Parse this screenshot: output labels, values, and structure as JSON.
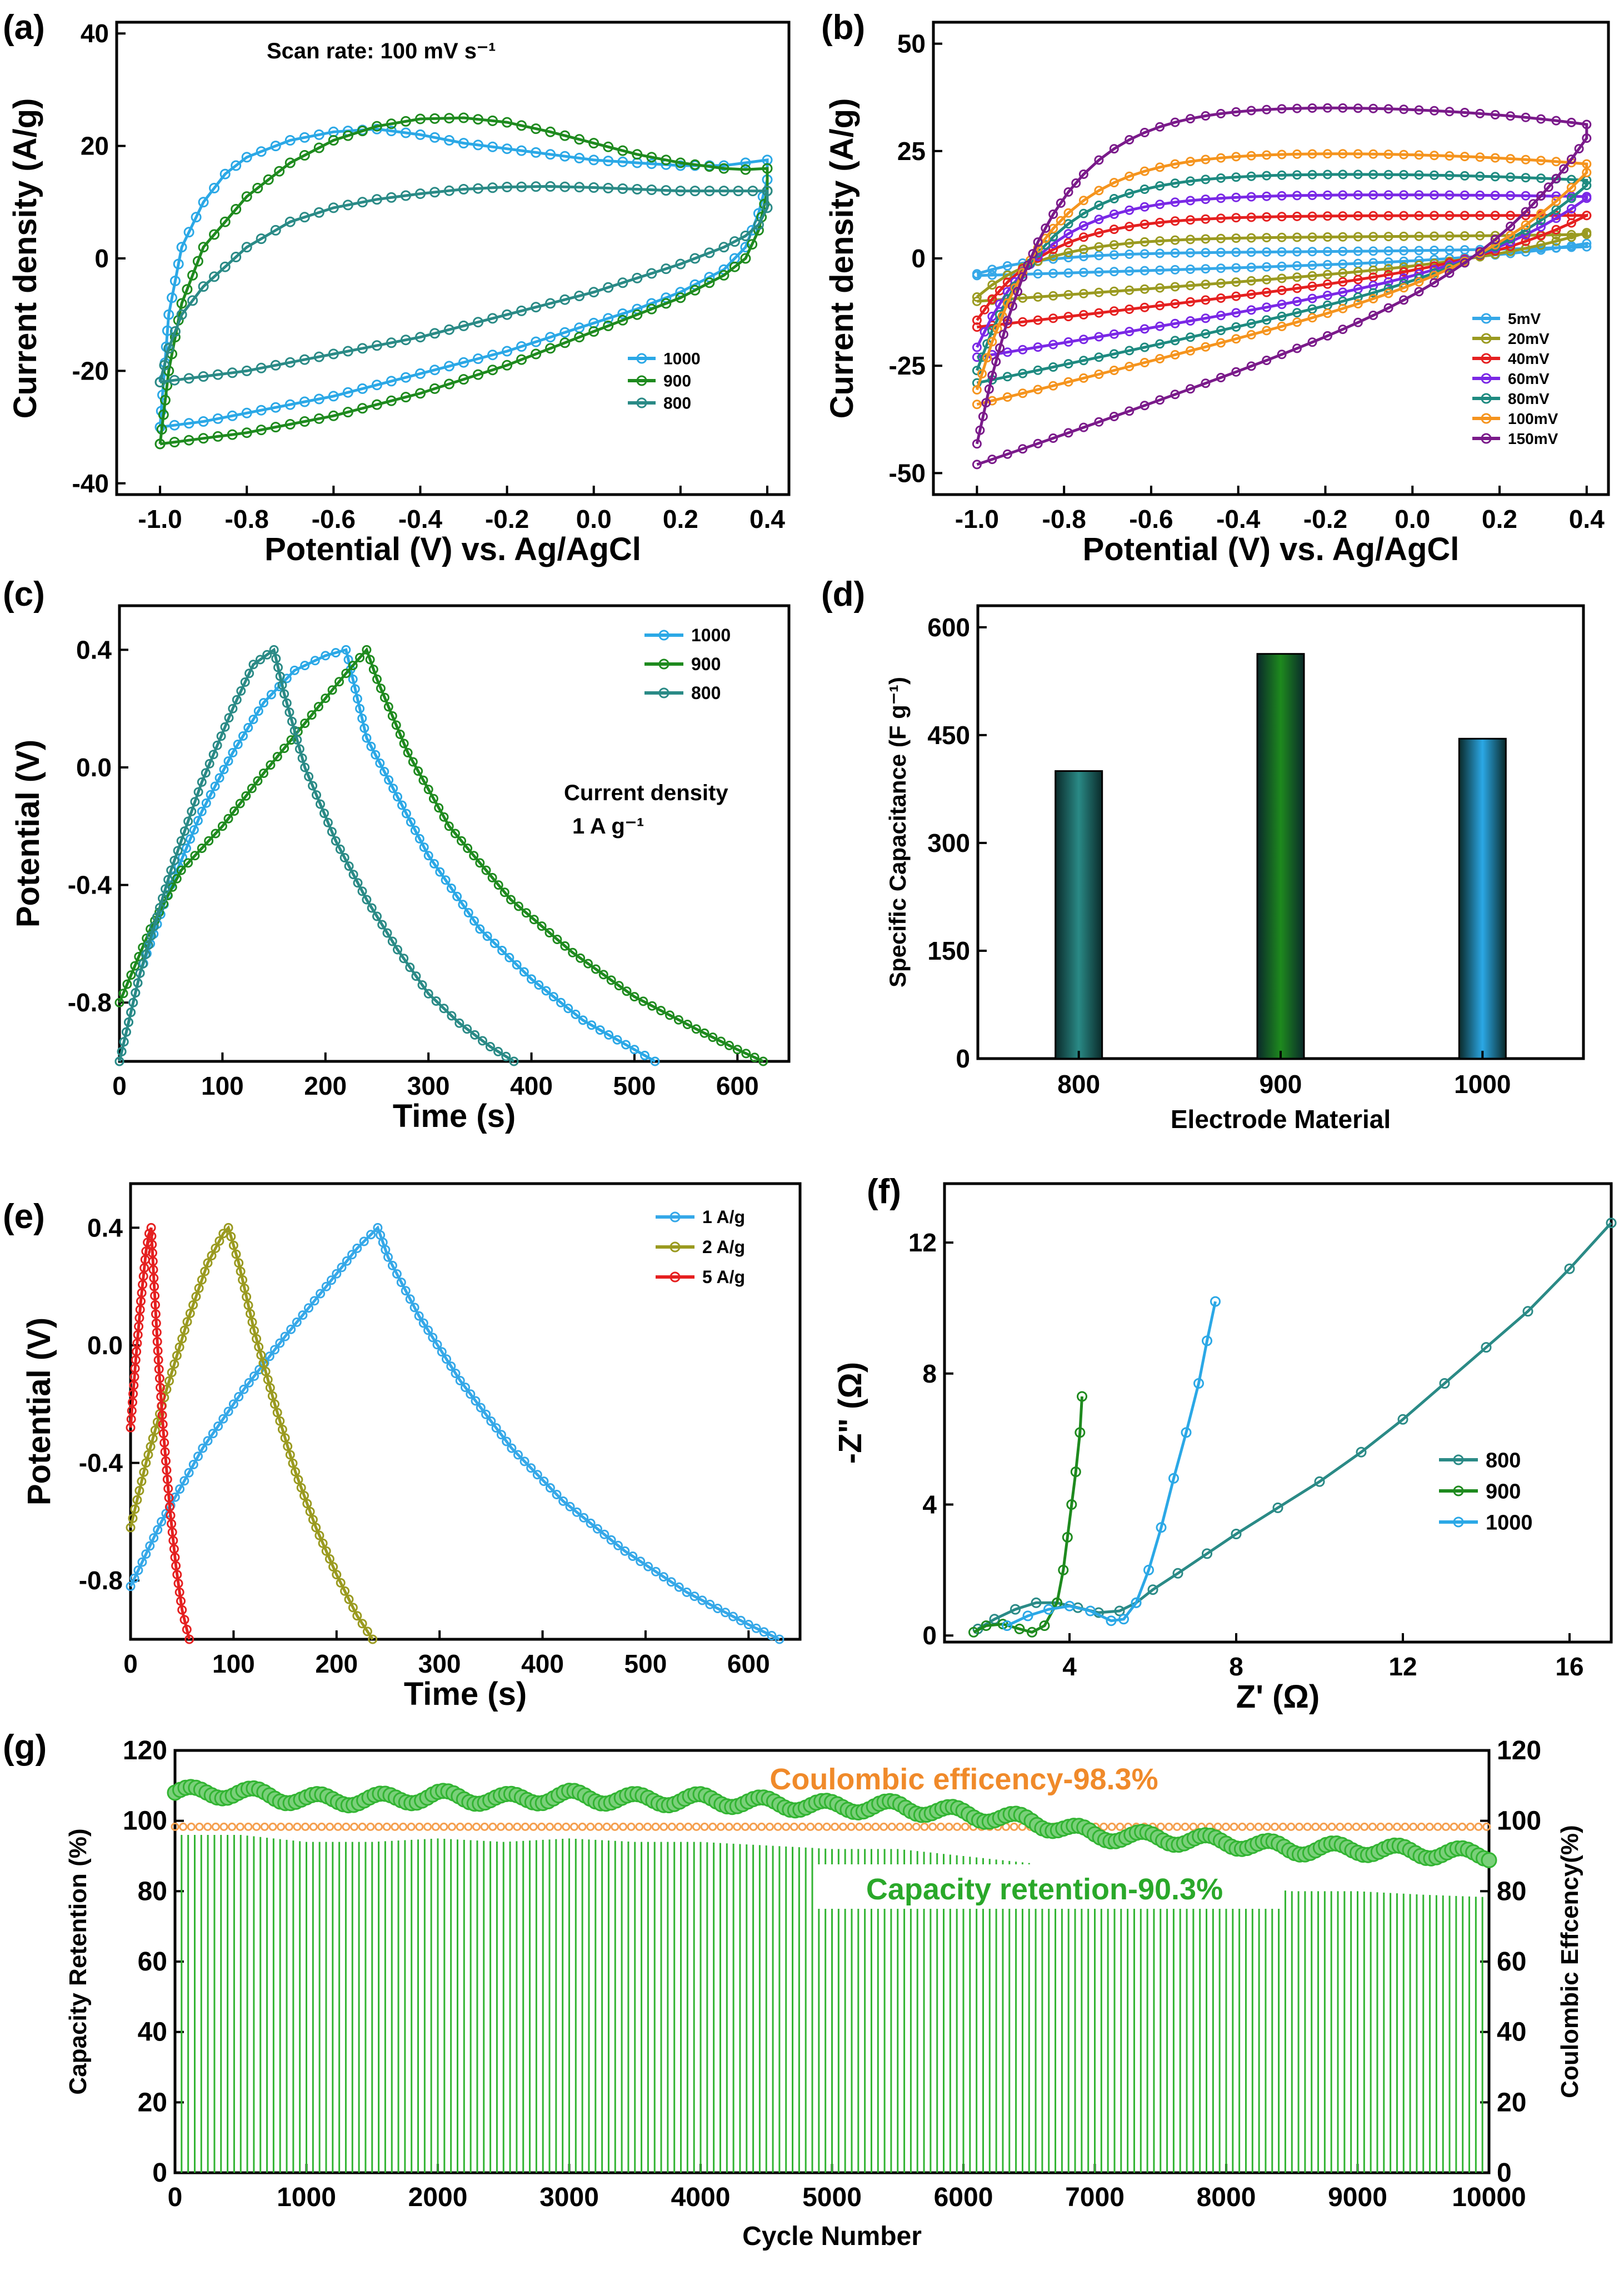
{
  "colors": {
    "c800": "#2a8a86",
    "c900": "#1e8a1e",
    "c1000": "#2ba8e6",
    "r5": "#35a8e8",
    "r20": "#9a9a20",
    "r40": "#e52020",
    "r60": "#7a28e6",
    "r80": "#1e8a80",
    "r100": "#f5941e",
    "r150": "#7a1a8a",
    "orange": "#f5a050",
    "green": "#32b432"
  },
  "chart_data": [
    {
      "id": "a",
      "type": "line",
      "panel_label": "(a)",
      "xlabel": "Potential (V) vs. Ag/AgCl",
      "ylabel": "Current density (A/g)",
      "xlim": [
        -1.1,
        0.45
      ],
      "ylim": [
        -42,
        42
      ],
      "xticks": [
        -1.0,
        -0.8,
        -0.6,
        -0.4,
        -0.2,
        0.0,
        0.2,
        0.4
      ],
      "xtick_labels": [
        "-1.0",
        "-0.8",
        "-0.6",
        "-0.4",
        "-0.2",
        "0.0",
        "0.2",
        "0.4"
      ],
      "yticks": [
        -40,
        -20,
        0,
        20,
        40
      ],
      "ytick_labels": [
        "-40",
        "-20",
        "0",
        "20",
        "40"
      ],
      "annotation": "Scan rate: 100 mV s⁻¹",
      "series": [
        {
          "name": "1000",
          "color_key": "c1000",
          "x": [
            -1.0,
            -0.98,
            -0.95,
            -0.9,
            -0.85,
            -0.8,
            -0.7,
            -0.6,
            -0.5,
            -0.4,
            -0.3,
            -0.2,
            -0.1,
            0.0,
            0.1,
            0.2,
            0.3,
            0.35,
            0.4,
            0.4,
            0.38,
            0.35,
            0.3,
            0.2,
            0.1,
            0.0,
            -0.1,
            -0.2,
            -0.3,
            -0.4,
            -0.5,
            -0.6,
            -0.7,
            -0.8,
            -0.9,
            -1.0
          ],
          "y": [
            -30,
            -10,
            2,
            10,
            15,
            18,
            21,
            22.5,
            23,
            22,
            20.5,
            19.5,
            18.5,
            17.5,
            17,
            16.5,
            16.5,
            17,
            17.5,
            14,
            8,
            2,
            -2,
            -6,
            -9,
            -11.5,
            -14,
            -16.5,
            -18.5,
            -20.5,
            -22.5,
            -24.5,
            -26,
            -27.5,
            -29,
            -30
          ]
        },
        {
          "name": "900",
          "color_key": "c900",
          "x": [
            -1.0,
            -0.98,
            -0.95,
            -0.9,
            -0.8,
            -0.7,
            -0.6,
            -0.5,
            -0.4,
            -0.3,
            -0.2,
            -0.1,
            0.0,
            0.1,
            0.2,
            0.3,
            0.35,
            0.4,
            0.4,
            0.38,
            0.35,
            0.3,
            0.2,
            0.1,
            0.0,
            -0.1,
            -0.2,
            -0.3,
            -0.4,
            -0.5,
            -0.6,
            -0.7,
            -0.8,
            -0.9,
            -1.0
          ],
          "y": [
            -33,
            -20,
            -8,
            2,
            11,
            17,
            21,
            23.5,
            24.8,
            25,
            24.2,
            22.5,
            20.5,
            18.5,
            17,
            16,
            15.8,
            16,
            12,
            5,
            0,
            -3,
            -7,
            -10,
            -13,
            -16,
            -19,
            -21.5,
            -24,
            -26,
            -28,
            -29.5,
            -31,
            -32,
            -33
          ]
        },
        {
          "name": "800",
          "color_key": "c800",
          "x": [
            -1.0,
            -0.98,
            -0.95,
            -0.9,
            -0.8,
            -0.7,
            -0.6,
            -0.5,
            -0.4,
            -0.3,
            -0.2,
            -0.1,
            0.0,
            0.1,
            0.2,
            0.3,
            0.4,
            0.4,
            0.38,
            0.35,
            0.3,
            0.2,
            0.1,
            0.0,
            -0.1,
            -0.2,
            -0.3,
            -0.4,
            -0.5,
            -0.6,
            -0.7,
            -0.8,
            -0.9,
            -1.0
          ],
          "y": [
            -22,
            -16,
            -10,
            -5,
            2,
            6.5,
            9,
            10.5,
            11.5,
            12.3,
            12.7,
            12.8,
            12.6,
            12.3,
            12,
            12,
            12,
            9,
            6,
            4,
            2,
            -1,
            -3.5,
            -6,
            -8,
            -10,
            -12,
            -14,
            -15.5,
            -17,
            -18.5,
            -20,
            -21,
            -22
          ]
        }
      ]
    },
    {
      "id": "b",
      "type": "line",
      "panel_label": "(b)",
      "xlabel": "Potential (V) vs. Ag/AgCl",
      "ylabel": "Current density (A/g)",
      "xlim": [
        -1.1,
        0.45
      ],
      "ylim": [
        -55,
        55
      ],
      "xticks": [
        -1.0,
        -0.8,
        -0.6,
        -0.4,
        -0.2,
        0.0,
        0.2,
        0.4
      ],
      "xtick_labels": [
        "-1.0",
        "-0.8",
        "-0.6",
        "-0.4",
        "-0.2",
        "0.0",
        "0.2",
        "0.4"
      ],
      "yticks": [
        -50,
        -25,
        0,
        25,
        50
      ],
      "ytick_labels": [
        "-50",
        "-25",
        "0",
        "25",
        "50"
      ],
      "series": [
        {
          "name": "5mV",
          "color_key": "r5",
          "top": 1.5,
          "bottom": -4,
          "end": 3.5
        },
        {
          "name": "20mV",
          "color_key": "r20",
          "top": 5,
          "bottom": -10,
          "end": 6
        },
        {
          "name": "40mV",
          "color_key": "r40",
          "top": 10,
          "bottom": -16,
          "end": 10
        },
        {
          "name": "60mV",
          "color_key": "r60",
          "top": 15,
          "bottom": -23,
          "end": 14
        },
        {
          "name": "80mV",
          "color_key": "r80",
          "top": 20,
          "bottom": -29,
          "end": 17
        },
        {
          "name": "100mV",
          "color_key": "r100",
          "top": 25,
          "bottom": -34,
          "end": 20
        },
        {
          "name": "150mV",
          "color_key": "r150",
          "top": 36,
          "bottom": -48,
          "end": 28
        }
      ]
    },
    {
      "id": "c",
      "type": "line",
      "panel_label": "(c)",
      "xlabel": "Time (s)",
      "ylabel": "Potential (V)",
      "xlim": [
        0,
        650
      ],
      "ylim": [
        -1.0,
        0.55
      ],
      "xticks": [
        0,
        100,
        200,
        300,
        400,
        500,
        600
      ],
      "xtick_labels": [
        "0",
        "100",
        "200",
        "300",
        "400",
        "500",
        "600"
      ],
      "yticks": [
        -0.8,
        -0.4,
        0.0,
        0.4
      ],
      "ytick_labels": [
        "-0.8",
        "-0.4",
        "0.0",
        "0.4"
      ],
      "annotation_lines": [
        "Current density",
        "1 A g⁻¹"
      ],
      "series": [
        {
          "name": "1000",
          "color_key": "c1000",
          "x": [
            0,
            20,
            50,
            80,
            110,
            140,
            170,
            200,
            220,
            240,
            270,
            300,
            350,
            400,
            450,
            500,
            520
          ],
          "y": [
            -1.0,
            -0.7,
            -0.4,
            -0.15,
            0.05,
            0.22,
            0.33,
            0.38,
            0.4,
            0.1,
            -0.1,
            -0.3,
            -0.55,
            -0.72,
            -0.86,
            -0.96,
            -1.0
          ]
        },
        {
          "name": "900",
          "color_key": "c900",
          "x": [
            0,
            30,
            60,
            100,
            140,
            180,
            220,
            240,
            250,
            280,
            320,
            380,
            440,
            500,
            560,
            600,
            625
          ],
          "y": [
            -0.8,
            -0.55,
            -0.35,
            -0.2,
            -0.02,
            0.15,
            0.32,
            0.4,
            0.3,
            0.05,
            -0.2,
            -0.45,
            -0.63,
            -0.78,
            -0.89,
            -0.96,
            -1.0
          ]
        },
        {
          "name": "800",
          "color_key": "c800",
          "x": [
            0,
            20,
            50,
            80,
            110,
            130,
            150,
            160,
            180,
            210,
            240,
            270,
            300,
            330,
            360,
            383
          ],
          "y": [
            -1.0,
            -0.7,
            -0.35,
            -0.05,
            0.2,
            0.35,
            0.4,
            0.25,
            0.0,
            -0.25,
            -0.45,
            -0.62,
            -0.77,
            -0.87,
            -0.95,
            -1.0
          ]
        }
      ]
    },
    {
      "id": "d",
      "type": "bar",
      "panel_label": "(d)",
      "xlabel": "Electrode Material",
      "ylabel": "Specific Capacitance (F g⁻¹)",
      "categories": [
        "800",
        "900",
        "1000"
      ],
      "values": [
        400,
        563,
        445
      ],
      "color_keys": [
        "c800",
        "c900",
        "c1000"
      ],
      "ylim": [
        0,
        630
      ],
      "yticks": [
        0,
        150,
        300,
        450,
        600
      ],
      "ytick_labels": [
        "0",
        "150",
        "300",
        "450",
        "600"
      ]
    },
    {
      "id": "e",
      "type": "line",
      "panel_label": "(e)",
      "xlabel": "Time (s)",
      "ylabel": "Potential (V)",
      "xlim": [
        0,
        650
      ],
      "ylim": [
        -1.0,
        0.55
      ],
      "xticks": [
        0,
        100,
        200,
        300,
        400,
        500,
        600
      ],
      "xtick_labels": [
        "0",
        "100",
        "200",
        "300",
        "400",
        "500",
        "600"
      ],
      "yticks": [
        -0.8,
        -0.4,
        0.0,
        0.4
      ],
      "ytick_labels": [
        "-0.8",
        "-0.4",
        "0.0",
        "0.4"
      ],
      "series": [
        {
          "name": "1 A/g",
          "color_key": "r5",
          "x": [
            0,
            30,
            70,
            110,
            150,
            190,
            220,
            240,
            250,
            280,
            320,
            370,
            420,
            480,
            540,
            600,
            630
          ],
          "y": [
            -0.82,
            -0.6,
            -0.35,
            -0.15,
            0.03,
            0.2,
            0.33,
            0.4,
            0.3,
            0.1,
            -0.12,
            -0.35,
            -0.53,
            -0.7,
            -0.84,
            -0.95,
            -1.0
          ]
        },
        {
          "name": "2 A/g",
          "color_key": "r20",
          "x": [
            0,
            15,
            35,
            55,
            75,
            90,
            95,
            105,
            120,
            140,
            160,
            180,
            200,
            220,
            235
          ],
          "y": [
            -0.62,
            -0.4,
            -0.15,
            0.08,
            0.28,
            0.38,
            0.4,
            0.28,
            0.05,
            -0.2,
            -0.43,
            -0.62,
            -0.78,
            -0.92,
            -1.0
          ]
        },
        {
          "name": "5 A/g",
          "color_key": "r40",
          "x": [
            0,
            5,
            10,
            15,
            18,
            20,
            23,
            27,
            32,
            38,
            44,
            50,
            57
          ],
          "y": [
            -0.28,
            -0.05,
            0.15,
            0.32,
            0.38,
            0.4,
            0.2,
            -0.05,
            -0.3,
            -0.55,
            -0.75,
            -0.9,
            -1.0
          ]
        }
      ]
    },
    {
      "id": "f",
      "type": "scatter",
      "panel_label": "(f)",
      "xlabel": "Z' (Ω)",
      "ylabel": "-Z\" (Ω)",
      "xlim": [
        1,
        17
      ],
      "ylim": [
        -0.2,
        13.8
      ],
      "xticks": [
        4,
        8,
        12,
        16
      ],
      "xtick_labels": [
        "4",
        "8",
        "12",
        "16"
      ],
      "yticks": [
        0,
        4,
        8,
        12
      ],
      "ytick_labels": [
        "0",
        "4",
        "8",
        "12"
      ],
      "series": [
        {
          "name": "800",
          "color_key": "c800",
          "x": [
            1.8,
            2.2,
            2.7,
            3.2,
            3.7,
            4.2,
            4.7,
            5.2,
            5.6,
            6.0,
            6.6,
            7.3,
            8.0,
            9.0,
            10.0,
            11.0,
            12.0,
            13.0,
            14.0,
            15.0,
            16.0,
            17.0
          ],
          "y": [
            0.2,
            0.5,
            0.8,
            1.0,
            1.0,
            0.85,
            0.7,
            0.75,
            1.0,
            1.4,
            1.9,
            2.5,
            3.1,
            3.9,
            4.7,
            5.6,
            6.6,
            7.7,
            8.8,
            9.9,
            11.2,
            12.6
          ]
        },
        {
          "name": "900",
          "color_key": "c900",
          "x": [
            1.7,
            2.0,
            2.4,
            2.8,
            3.1,
            3.4,
            3.7,
            3.85,
            3.95,
            4.05,
            4.15,
            4.25,
            4.3
          ],
          "y": [
            0.1,
            0.3,
            0.35,
            0.2,
            0.1,
            0.3,
            1.0,
            2.0,
            3.0,
            4.0,
            5.0,
            6.2,
            7.3
          ]
        },
        {
          "name": "1000",
          "color_key": "c1000",
          "x": [
            2.5,
            3.0,
            3.5,
            4.0,
            4.5,
            5.0,
            5.3,
            5.6,
            5.9,
            6.2,
            6.5,
            6.8,
            7.1,
            7.3,
            7.5
          ],
          "y": [
            0.3,
            0.6,
            0.8,
            0.9,
            0.75,
            0.45,
            0.5,
            1.0,
            2.0,
            3.3,
            4.8,
            6.2,
            7.7,
            9.0,
            10.2
          ]
        }
      ]
    },
    {
      "id": "g",
      "type": "bar",
      "panel_label": "(g)",
      "xlabel": "Cycle Number",
      "ylabel": "Capacity Retention (%)",
      "ylabel_right": "Coulombic Effcency(%)",
      "xlim": [
        0,
        10000
      ],
      "ylim": [
        0,
        120
      ],
      "xticks": [
        0,
        1000,
        2000,
        3000,
        4000,
        5000,
        6000,
        7000,
        8000,
        9000,
        10000
      ],
      "xtick_labels": [
        "0",
        "1000",
        "2000",
        "3000",
        "4000",
        "5000",
        "6000",
        "7000",
        "8000",
        "9000",
        "10000"
      ],
      "yticks": [
        0,
        20,
        40,
        60,
        80,
        100,
        120
      ],
      "ytick_labels": [
        "0",
        "20",
        "40",
        "60",
        "80",
        "100",
        "120"
      ],
      "annotation_coulombic": "Coulombic efficency-98.3%",
      "annotation_retention": "Capacity retention-90.3%",
      "coulombic_efficiency": 98.3,
      "capacity_retention_x": [
        0,
        500,
        1000,
        1500,
        2000,
        2500,
        3000,
        3500,
        4000,
        4500,
        5000,
        5500,
        6000,
        6500,
        7000,
        7500,
        8000,
        8500,
        9000,
        9500,
        10000
      ],
      "capacity_retention_y": [
        108,
        108,
        106,
        106,
        107,
        106,
        107,
        106,
        106,
        105,
        104,
        104,
        102,
        100,
        96,
        95,
        94,
        92,
        92,
        91,
        90.3
      ]
    }
  ]
}
